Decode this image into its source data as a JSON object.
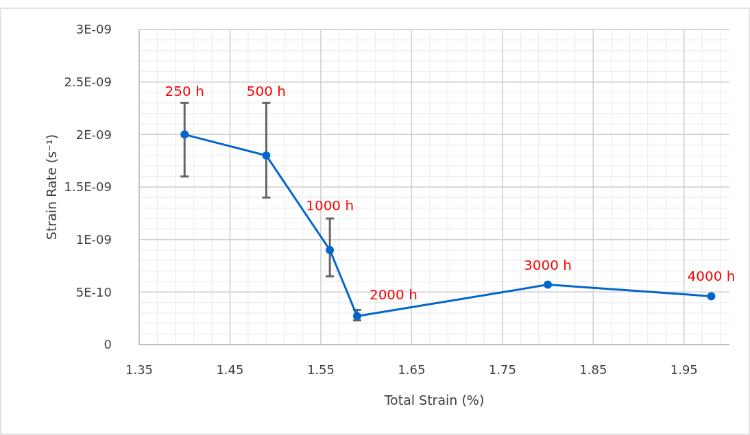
{
  "chart_data": {
    "type": "line",
    "xlabel": "Total Strain (%)",
    "ylabel": "Strain Rate (s⁻¹)",
    "x": [
      1.4,
      1.49,
      1.56,
      1.59,
      1.8,
      1.98
    ],
    "series": [
      {
        "color": "#0066cc",
        "values": [
          2e-09,
          1.8e-09,
          9e-10,
          2.7e-10,
          5.7e-10,
          4.6e-10
        ],
        "errors": [
          [
            1.6e-09,
            2.3e-09
          ],
          [
            1.4e-09,
            2.3e-09
          ],
          [
            6.5e-10,
            1.2e-09
          ],
          [
            2.3e-10,
            3.3e-10
          ],
          null,
          null
        ]
      }
    ],
    "xlim": [
      1.35,
      2.0
    ],
    "xticks": [
      1.35,
      1.45,
      1.55,
      1.65,
      1.75,
      1.85,
      1.95
    ],
    "ylim": [
      0,
      3e-09
    ],
    "yticks": [
      {
        "value": 0,
        "label": "0"
      },
      {
        "value": 5e-10,
        "label": "5E-10"
      },
      {
        "value": 1e-09,
        "label": "1E-09"
      },
      {
        "value": 1.5e-09,
        "label": "1.5E-09"
      },
      {
        "value": 2e-09,
        "label": "2E-09"
      },
      {
        "value": 2.5e-09,
        "label": "2.5E-09"
      },
      {
        "value": 3e-09,
        "label": "3E-09"
      }
    ],
    "grid": true,
    "marker": "circle",
    "line_style": "solid",
    "annotations": [
      {
        "text": "250 h",
        "x": 1.4,
        "y": 2.3e-09
      },
      {
        "text": "500 h",
        "x": 1.49,
        "y": 2.3e-09
      },
      {
        "text": "1000 h",
        "x": 1.56,
        "y": 1.2e-09
      },
      {
        "text": "2000 h",
        "x": 1.59,
        "y": 2.7e-10
      },
      {
        "text": "3000 h",
        "x": 1.8,
        "y": 5.7e-10
      },
      {
        "text": "4000 h",
        "x": 1.98,
        "y": 4.6e-10
      }
    ]
  }
}
